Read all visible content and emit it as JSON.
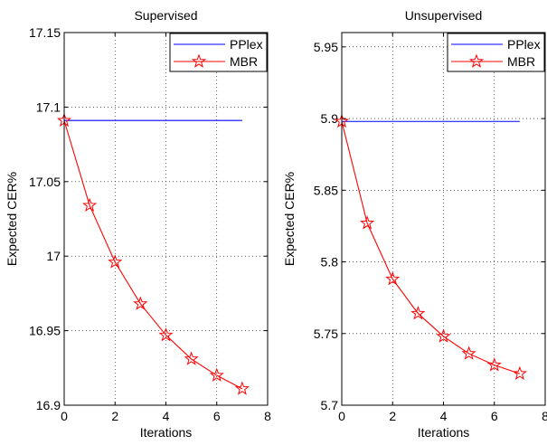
{
  "chart_data": [
    {
      "type": "line",
      "title": "Supervised",
      "xlabel": "Iterations",
      "ylabel": "Expected CER%",
      "xlim": [
        0,
        8
      ],
      "ylim": [
        16.9,
        17.15
      ],
      "xticks": [
        0,
        2,
        4,
        6,
        8
      ],
      "yticks": [
        16.9,
        16.95,
        17,
        17.05,
        17.1,
        17.15
      ],
      "xtick_labels": [
        "0",
        "2",
        "4",
        "6",
        "8"
      ],
      "ytick_labels": [
        "16.9",
        "16.95",
        "17",
        "17.05",
        "17.1",
        "17.15"
      ],
      "grid": true,
      "legend_position": "top-right",
      "series": [
        {
          "name": "PPlex",
          "color": "#0000ff",
          "marker": "none",
          "x": [
            0,
            7
          ],
          "y": [
            17.091,
            17.091
          ]
        },
        {
          "name": "MBR",
          "color": "#ff0000",
          "marker": "star",
          "x": [
            0,
            1,
            2,
            3,
            4,
            5,
            6,
            7
          ],
          "y": [
            17.091,
            17.034,
            16.996,
            16.968,
            16.947,
            16.931,
            16.92,
            16.911
          ]
        }
      ]
    },
    {
      "type": "line",
      "title": "Unsupervised",
      "xlabel": "Iterations",
      "ylabel": "Expected CER%",
      "xlim": [
        0,
        8
      ],
      "ylim": [
        5.7,
        5.96
      ],
      "xticks": [
        0,
        2,
        4,
        6,
        8
      ],
      "yticks": [
        5.7,
        5.75,
        5.8,
        5.85,
        5.9,
        5.95
      ],
      "xtick_labels": [
        "0",
        "2",
        "4",
        "6",
        "8"
      ],
      "ytick_labels": [
        "5.7",
        "5.75",
        "5.8",
        "5.85",
        "5.9",
        "5.95"
      ],
      "grid": true,
      "legend_position": "top-right",
      "series": [
        {
          "name": "PPlex",
          "color": "#0000ff",
          "marker": "none",
          "x": [
            0,
            7
          ],
          "y": [
            5.898,
            5.898
          ]
        },
        {
          "name": "MBR",
          "color": "#ff0000",
          "marker": "star",
          "x": [
            0,
            1,
            2,
            3,
            4,
            5,
            6,
            7
          ],
          "y": [
            5.898,
            5.827,
            5.788,
            5.764,
            5.748,
            5.736,
            5.728,
            5.722
          ]
        }
      ]
    }
  ]
}
